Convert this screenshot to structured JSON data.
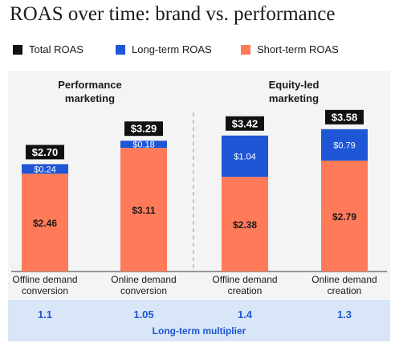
{
  "title": "ROAS over time: brand vs. performance",
  "legend": [
    {
      "label": "Total ROAS",
      "color": "#111111"
    },
    {
      "label": "Long-term ROAS",
      "color": "#1f56d6"
    },
    {
      "label": "Short-term ROAS",
      "color": "#ff7a59"
    }
  ],
  "chart_data": {
    "type": "bar",
    "stacked": true,
    "groups": [
      {
        "label": "Performance\nmarketing",
        "categories": [
          0,
          1
        ]
      },
      {
        "label": "Equity-led\nmarketing",
        "categories": [
          2,
          3
        ]
      }
    ],
    "categories": [
      "Offline demand\nconversion",
      "Online demand\nconversion",
      "Offline demand\ncreation",
      "Online demand\ncreation"
    ],
    "series": [
      {
        "name": "Short-term ROAS",
        "color": "#ff7a59",
        "values": [
          2.46,
          3.11,
          2.38,
          2.79
        ],
        "labels": [
          "$2.46",
          "$3.11",
          "$2.38",
          "$2.79"
        ]
      },
      {
        "name": "Long-term ROAS",
        "color": "#1f56d6",
        "values": [
          0.24,
          0.18,
          1.04,
          0.79
        ],
        "labels": [
          "$0.24",
          "$0.18",
          "$1.04",
          "$0.79"
        ]
      }
    ],
    "totals": {
      "name": "Total ROAS",
      "values": [
        2.7,
        3.29,
        3.42,
        3.58
      ],
      "labels": [
        "$2.70",
        "$3.29",
        "$3.42",
        "$3.58"
      ]
    },
    "multipliers": [
      "1.1",
      "1.05",
      "1.4",
      "1.3"
    ],
    "multiplier_label": "Long-term multiplier",
    "ylim": [
      0,
      3.9
    ],
    "grid": false
  }
}
